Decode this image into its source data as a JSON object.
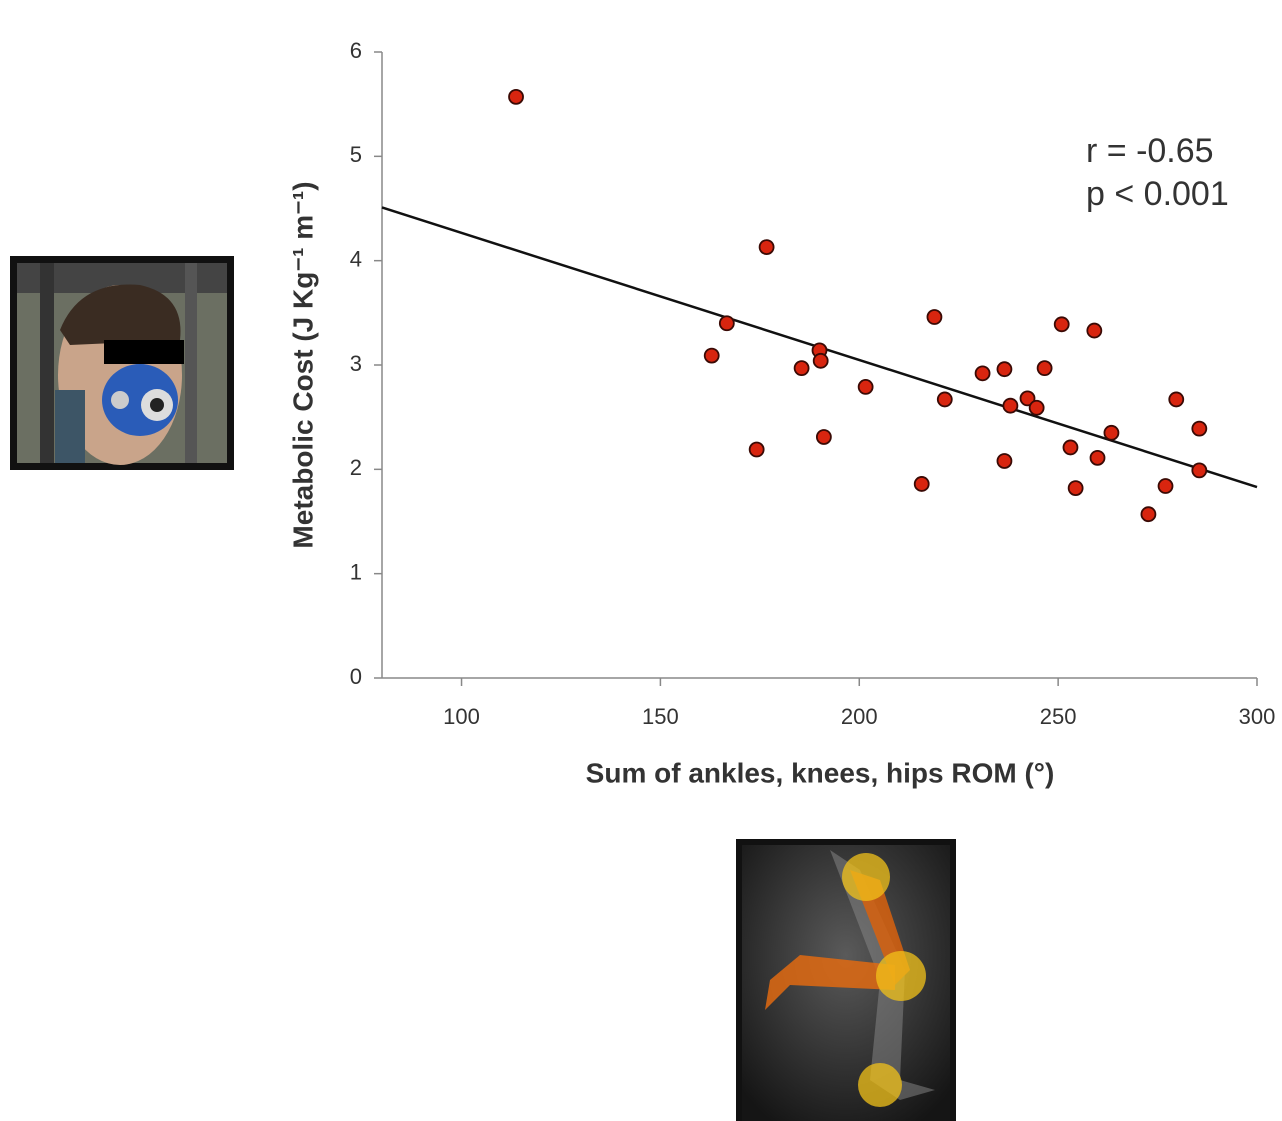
{
  "chart_data": {
    "type": "scatter",
    "xlabel": "Sum of ankles, knees, hips ROM (°)",
    "ylabel": "Metabolic Cost (J Kg⁻¹ m⁻¹)",
    "annotations": [
      "r = -0.65",
      "p < 0.001"
    ],
    "x": [
      113.7,
      176.7,
      166.7,
      162.9,
      174.2,
      185.5,
      190.0,
      190.3,
      191.1,
      201.6,
      215.7,
      218.9,
      221.5,
      231.0,
      236.5,
      236.5,
      238.0,
      242.3,
      244.6,
      246.6,
      250.9,
      253.1,
      254.4,
      259.1,
      259.9,
      263.4,
      272.7,
      277.0,
      279.7,
      285.5,
      285.5
    ],
    "values": [
      5.57,
      4.13,
      3.4,
      3.09,
      2.19,
      2.97,
      3.14,
      3.04,
      2.31,
      2.79,
      1.86,
      3.46,
      2.67,
      2.92,
      2.96,
      2.08,
      2.61,
      2.68,
      2.59,
      2.97,
      3.39,
      2.21,
      1.82,
      3.33,
      2.11,
      2.35,
      1.57,
      1.84,
      2.67,
      2.39,
      1.99
    ],
    "color": "#d8250f",
    "trendline": {
      "x": [
        80,
        300
      ],
      "values": [
        4.51,
        1.83
      ],
      "color": "#111111"
    },
    "xlim": [
      80,
      300
    ],
    "xticks": [
      100,
      150,
      200,
      250,
      300
    ],
    "ylim": [
      0,
      6
    ],
    "yticks": [
      0,
      1,
      2,
      3,
      4,
      5,
      6
    ],
    "grid": false
  }
}
